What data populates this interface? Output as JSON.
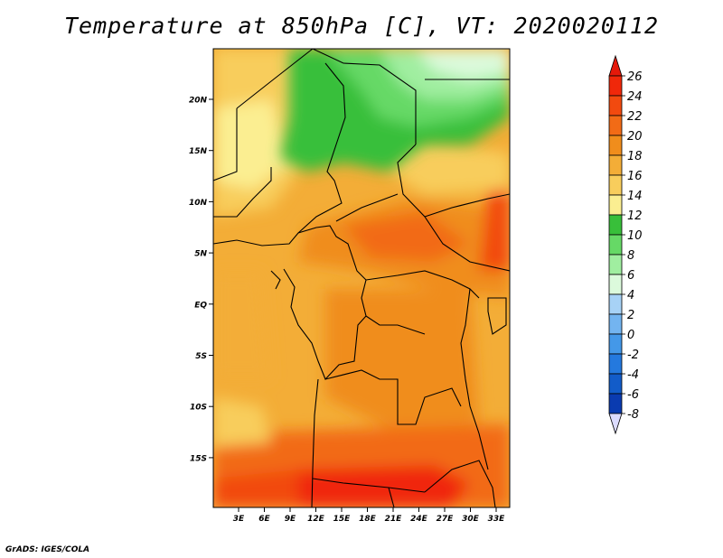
{
  "title": "Temperature at 850hPa [C], VT: 2020020112",
  "footer": "GrADS: IGES/COLA",
  "map": {
    "lat_ticks": [
      "20N",
      "15N",
      "10N",
      "5N",
      "EQ",
      "5S",
      "10S",
      "15S"
    ],
    "lon_ticks": [
      "3E",
      "6E",
      "9E",
      "12E",
      "15E",
      "18E",
      "21E",
      "24E",
      "27E",
      "30E",
      "33E"
    ]
  },
  "colorbar": {
    "levels": [
      "26",
      "24",
      "22",
      "20",
      "18",
      "16",
      "14",
      "12",
      "10",
      "8",
      "6",
      "4",
      "2",
      "0",
      "-2",
      "-4",
      "-6",
      "-8"
    ],
    "colors": [
      "#f0280a",
      "#f24a0f",
      "#f26b16",
      "#f08d1c",
      "#f3ad37",
      "#f8cd5c",
      "#fbee91",
      "#38bf3a",
      "#66d966",
      "#a0eea0",
      "#dcfadc",
      "#a7d2f6",
      "#73b4f0",
      "#4498e8",
      "#2479de",
      "#125cc9",
      "#0a3bb0",
      "#061f80",
      "#000a55"
    ],
    "top_color": "#e5190a",
    "bottom_color": "#dcdcff"
  }
}
